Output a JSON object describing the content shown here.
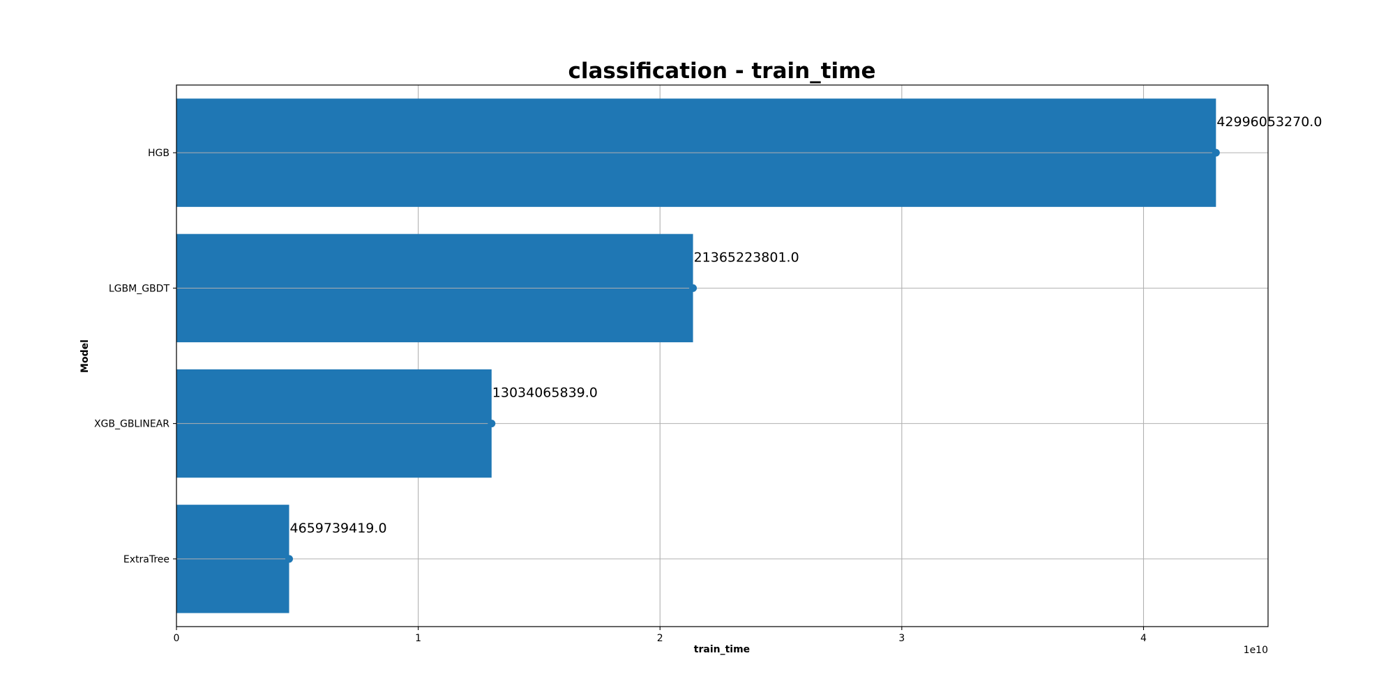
{
  "chart_data": {
    "type": "bar",
    "orientation": "horizontal",
    "title": "classification - train_time",
    "xlabel": "train_time",
    "ylabel": "Model",
    "x_offset_label": "1e10",
    "categories": [
      "HGB",
      "LGBM_GBDT",
      "XGB_GBLINEAR",
      "ExtraTree"
    ],
    "values": [
      42996053270.0,
      21365223801.0,
      13034065839.0,
      4659739419.0
    ],
    "data_labels": [
      "42996053270.0",
      "21365223801.0",
      "13034065839.0",
      "4659739419.0"
    ],
    "xlim": [
      0,
      45150000000
    ],
    "xticks": [
      0,
      10000000000,
      20000000000,
      30000000000,
      40000000000
    ],
    "xtick_labels": [
      "0",
      "1",
      "2",
      "3",
      "4"
    ],
    "grid": true,
    "markers": "point at bar end",
    "colors": {
      "bar": "#1f77b4",
      "grid": "#b0b0b0",
      "axes": "#000000"
    }
  }
}
